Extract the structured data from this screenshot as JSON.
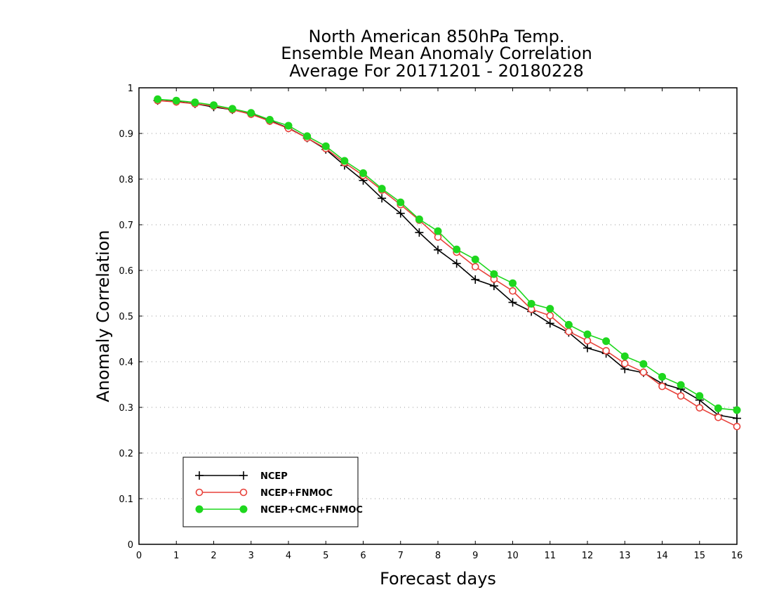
{
  "chart_data": {
    "type": "line",
    "title": [
      "North American 850hPa Temp.",
      "Ensemble Mean Anomaly Correlation",
      "Average For 20171201 - 20180228"
    ],
    "xlabel": "Forecast days",
    "ylabel": "Anomaly Correlation",
    "xlim": [
      0,
      16
    ],
    "ylim": [
      0,
      1
    ],
    "xticks": [
      "0",
      "1",
      "2",
      "3",
      "4",
      "5",
      "6",
      "7",
      "8",
      "9",
      "10",
      "11",
      "12",
      "13",
      "14",
      "15",
      "16"
    ],
    "yticks": [
      "0",
      "0.1",
      "0.2",
      "0.3",
      "0.4",
      "0.5",
      "0.6",
      "0.7",
      "0.8",
      "0.9",
      "1"
    ],
    "grid": true,
    "legend_position": "bottom-left",
    "x": [
      0.5,
      1,
      1.5,
      2,
      2.5,
      3,
      3.5,
      4,
      4.5,
      5,
      5.5,
      6,
      6.5,
      7,
      7.5,
      8,
      8.5,
      9,
      9.5,
      10,
      10.5,
      11,
      11.5,
      12,
      12.5,
      13,
      13.5,
      14,
      14.5,
      15,
      15.5,
      16
    ],
    "series": [
      {
        "name": "NCEP",
        "color": "#000000",
        "marker": "plus",
        "values": [
          0.972,
          0.97,
          0.965,
          0.958,
          0.952,
          0.943,
          0.928,
          0.912,
          0.89,
          0.865,
          0.83,
          0.797,
          0.758,
          0.725,
          0.683,
          0.645,
          0.615,
          0.58,
          0.566,
          0.53,
          0.51,
          0.484,
          0.464,
          0.43,
          0.418,
          0.384,
          0.376,
          0.352,
          0.34,
          0.316,
          0.283,
          0.276
        ]
      },
      {
        "name": "NCEP+FNMOC",
        "color": "#e8413a",
        "marker": "open-circle",
        "values": [
          0.972,
          0.969,
          0.965,
          0.96,
          0.952,
          0.942,
          0.927,
          0.911,
          0.89,
          0.867,
          0.836,
          0.808,
          0.776,
          0.744,
          0.71,
          0.673,
          0.64,
          0.608,
          0.581,
          0.555,
          0.515,
          0.501,
          0.466,
          0.446,
          0.424,
          0.396,
          0.377,
          0.346,
          0.325,
          0.299,
          0.278,
          0.258
        ]
      },
      {
        "name": "NCEP+CMC+FNMOC",
        "color": "#1ed71e",
        "marker": "filled-circle",
        "values": [
          0.975,
          0.972,
          0.968,
          0.962,
          0.954,
          0.945,
          0.93,
          0.917,
          0.894,
          0.872,
          0.84,
          0.813,
          0.779,
          0.749,
          0.712,
          0.686,
          0.646,
          0.624,
          0.592,
          0.572,
          0.527,
          0.516,
          0.481,
          0.46,
          0.445,
          0.412,
          0.395,
          0.367,
          0.349,
          0.325,
          0.298,
          0.294
        ]
      }
    ]
  }
}
